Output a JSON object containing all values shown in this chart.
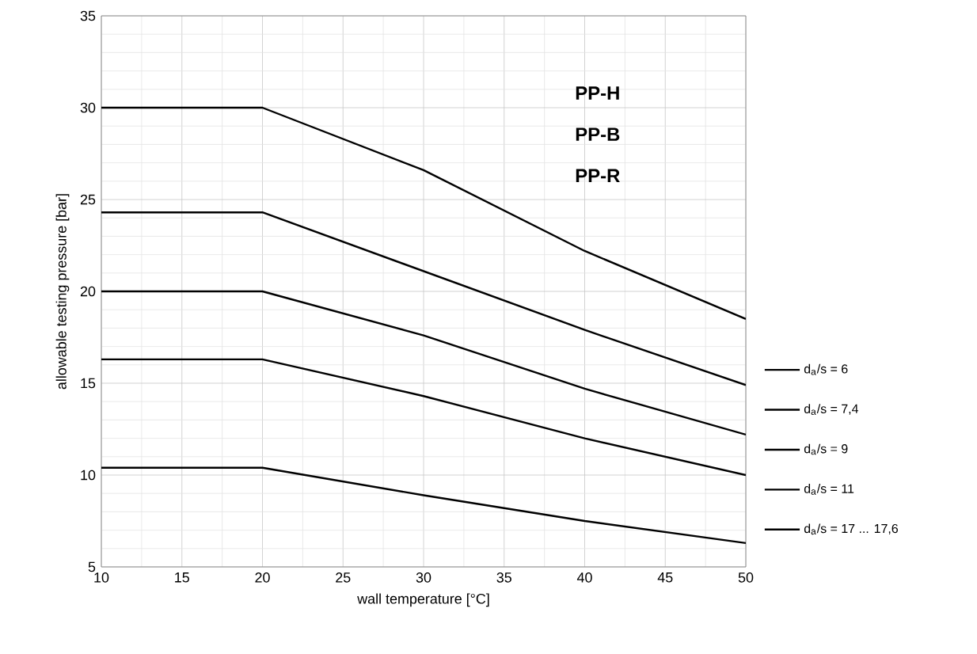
{
  "chart_data": {
    "type": "line",
    "xlabel": "wall temperature [°C]",
    "ylabel": "allowable testing pressure [bar]",
    "x": [
      10,
      20,
      30,
      40,
      50
    ],
    "series": [
      {
        "name": "d$_{a}$/s = 6",
        "color": "#000000",
        "values": [
          30,
          30,
          26.6,
          22.2,
          18.5
        ]
      },
      {
        "name": "d$_{a}$/s = 7,4",
        "color": "#000000",
        "values": [
          24.3,
          24.3,
          21.1,
          17.9,
          14.9
        ]
      },
      {
        "name": "d$_{a}$/s = 9",
        "color": "#000000",
        "values": [
          20,
          20,
          17.6,
          14.7,
          12.2
        ]
      },
      {
        "name": "d$_{a}$/s = 11",
        "color": "#000000",
        "values": [
          16.3,
          16.3,
          14.3,
          12.0,
          10.0
        ]
      },
      {
        "name": "d$_{a}$/s = 17 ... 17,6",
        "color": "#000000",
        "values": [
          10.4,
          10.4,
          8.9,
          7.5,
          6.3
        ]
      }
    ],
    "xlim": [
      10,
      50
    ],
    "ylim": [
      5,
      35
    ],
    "xticks": [
      10,
      15,
      20,
      25,
      30,
      35,
      40,
      45,
      50
    ],
    "yticks": [
      5,
      10,
      15,
      20,
      25,
      30,
      35
    ],
    "grid": true,
    "legend": "right",
    "marker": "none",
    "line_style": "solid",
    "annotations": [
      "PP-H",
      "PP-B",
      "PP-R"
    ]
  }
}
